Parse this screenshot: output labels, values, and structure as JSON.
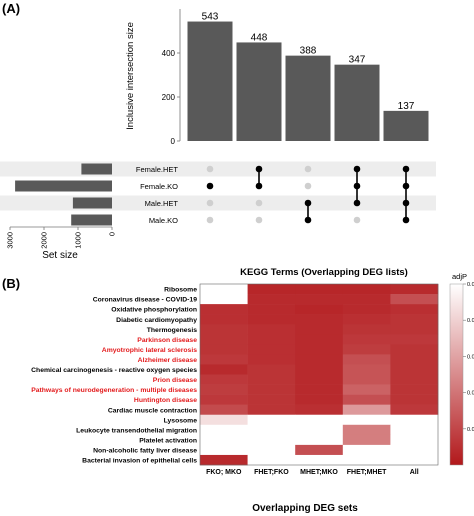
{
  "panel_a": {
    "label": "(A)"
  },
  "panel_b": {
    "label": "(B)"
  },
  "colors": {
    "bar": "#595959",
    "row_band": "#ededed",
    "dot_on": "#000000",
    "dot_off": "#cfcfcf",
    "heat_high": "#b2181b",
    "heat_low": "#ffffff",
    "highlight_text": "#e31a1c"
  },
  "chart_data": [
    {
      "type": "bar",
      "name": "upset-intersections",
      "ylabel": "Inclusive intersection size",
      "ylim": [
        0,
        600
      ],
      "yticks": [
        0,
        200,
        400
      ],
      "values": [
        543,
        448,
        388,
        347,
        137
      ],
      "sets": [
        "Female.HET",
        "Female.KO",
        "Male.HET",
        "Male.KO"
      ],
      "membership": [
        [
          false,
          true,
          false,
          false
        ],
        [
          true,
          true,
          false,
          false
        ],
        [
          false,
          false,
          true,
          true
        ],
        [
          true,
          true,
          true,
          false
        ],
        [
          true,
          true,
          true,
          true
        ]
      ]
    },
    {
      "type": "bar",
      "name": "set-size",
      "orientation": "horizontal",
      "xlabel": "Set size",
      "xlim": [
        3000,
        0
      ],
      "xticks": [
        3000,
        2000,
        1000,
        0
      ],
      "categories": [
        "Female.HET",
        "Female.KO",
        "Male.HET",
        "Male.KO"
      ],
      "values": [
        900,
        2850,
        1150,
        1200
      ]
    },
    {
      "type": "heatmap",
      "name": "kegg-heatmap",
      "title": "KEGG Terms (Overlapping DEG lists)",
      "xlabel": "Overlapping DEG sets",
      "legend_title": "adjP",
      "legend_ticks": [
        0.01,
        0.02,
        0.03,
        0.04,
        0.05
      ],
      "legend_range": [
        0.0,
        0.05
      ],
      "columns": [
        "FKO; MKO",
        "FHET;FKO",
        "MHET;MKO",
        "FHET;MHET",
        "All"
      ],
      "rows": [
        {
          "term": "Ribosome",
          "highlight": false,
          "values": [
            null,
            0.003,
            0.003,
            0.003,
            0.004
          ]
        },
        {
          "term": "Coronavirus disease - COVID-19",
          "highlight": false,
          "values": [
            null,
            0.004,
            0.004,
            0.004,
            0.012
          ]
        },
        {
          "term": "Oxidative phosphorylation",
          "highlight": false,
          "values": [
            0.005,
            0.004,
            0.003,
            0.004,
            0.005
          ]
        },
        {
          "term": "Diabetic cardiomyopathy",
          "highlight": false,
          "values": [
            0.005,
            0.004,
            0.004,
            0.005,
            0.006
          ]
        },
        {
          "term": "Thermogenesis",
          "highlight": false,
          "values": [
            0.006,
            0.005,
            0.004,
            0.006,
            0.006
          ]
        },
        {
          "term": "Parkinson disease",
          "highlight": true,
          "values": [
            0.006,
            0.005,
            0.004,
            0.007,
            0.007
          ]
        },
        {
          "term": "Amyotrophic lateral sclerosis",
          "highlight": true,
          "values": [
            0.006,
            0.005,
            0.004,
            0.008,
            0.006
          ]
        },
        {
          "term": "Alzheimer disease",
          "highlight": true,
          "values": [
            0.007,
            0.005,
            0.004,
            0.012,
            0.006
          ]
        },
        {
          "term": "Chemical carcinogenesis - reactive oxygen species",
          "highlight": false,
          "values": [
            0.004,
            0.006,
            0.004,
            0.013,
            0.006
          ]
        },
        {
          "term": "Prion disease",
          "highlight": true,
          "values": [
            0.007,
            0.006,
            0.004,
            0.013,
            0.006
          ]
        },
        {
          "term": "Pathways of neurodegeneration - multiple diseases",
          "highlight": true,
          "values": [
            0.008,
            0.006,
            0.004,
            0.016,
            0.006
          ]
        },
        {
          "term": "Huntington disease",
          "highlight": true,
          "values": [
            0.007,
            0.006,
            0.004,
            0.012,
            0.006
          ]
        },
        {
          "term": "Cardiac muscle contraction",
          "highlight": false,
          "values": [
            0.011,
            0.006,
            0.005,
            0.028,
            0.007
          ]
        },
        {
          "term": "Lysosome",
          "highlight": false,
          "values": [
            0.043,
            null,
            null,
            null,
            null
          ]
        },
        {
          "term": "Leukocyte transendothelial migration",
          "highlight": false,
          "values": [
            null,
            null,
            null,
            0.022,
            null
          ]
        },
        {
          "term": "Platelet activation",
          "highlight": false,
          "values": [
            null,
            null,
            null,
            0.022,
            null
          ]
        },
        {
          "term": "Non-alcoholic fatty liver disease",
          "highlight": false,
          "values": [
            null,
            null,
            0.012,
            null,
            null
          ]
        },
        {
          "term": "Bacterial invasion of epithelial cells",
          "highlight": false,
          "values": [
            0.004,
            null,
            null,
            null,
            null
          ]
        }
      ]
    }
  ]
}
